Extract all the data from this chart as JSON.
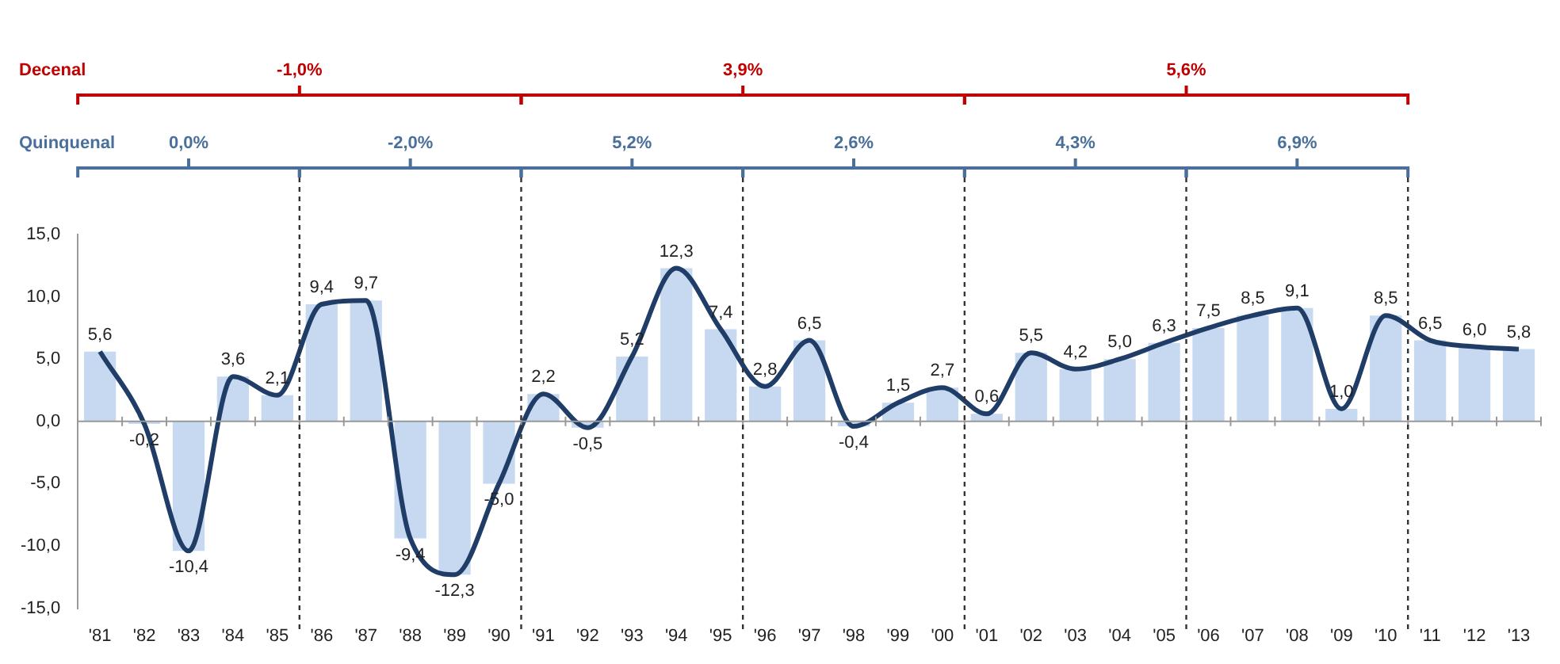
{
  "chart_data": {
    "type": "bar",
    "categories": [
      "'81",
      "'82",
      "'83",
      "'84",
      "'85",
      "'86",
      "'87",
      "'88",
      "'89",
      "'90",
      "'91",
      "'92",
      "'93",
      "'94",
      "'95",
      "'96",
      "'97",
      "'98",
      "'99",
      "'00",
      "'01",
      "'02",
      "'03",
      "'04",
      "'05",
      "'06",
      "'07",
      "'08",
      "'09",
      "'10",
      "'11",
      "'12",
      "'13"
    ],
    "series": [
      {
        "color": "#c6d9f1",
        "values": [
          5.6,
          -0.2,
          -10.4,
          3.6,
          2.1,
          9.4,
          9.7,
          -9.4,
          -12.3,
          -5.0,
          2.2,
          -0.5,
          5.2,
          12.3,
          7.4,
          2.8,
          6.5,
          -0.4,
          1.5,
          2.7,
          0.6,
          5.5,
          4.2,
          5.0,
          6.3,
          7.5,
          8.5,
          9.1,
          1.0,
          8.5,
          6.5,
          6.0,
          5.8
        ],
        "value_labels": [
          "5,6",
          "-0,2",
          "-10,4",
          "3,6",
          "2,1",
          "9,4",
          "9,7",
          "-9,4",
          "-12,3",
          "-5,0",
          "2,2",
          "-0,5",
          "5,2",
          "12,3",
          "7,4",
          "2,8",
          "6,5",
          "-0,4",
          "1,5",
          "2,7",
          "0,6",
          "5,5",
          "4,2",
          "5,0",
          "6,3",
          "7,5",
          "8,5",
          "9,1",
          "1,0",
          "8,5",
          "6,5",
          "6,0",
          "5,8"
        ]
      },
      {
        "type": "line",
        "color": "#1f3d66",
        "values": [
          5.6,
          -0.2,
          -10.4,
          3.6,
          2.1,
          9.4,
          9.7,
          -9.4,
          -12.3,
          -5.0,
          2.2,
          -0.5,
          5.2,
          12.3,
          7.4,
          2.8,
          6.5,
          -0.4,
          1.5,
          2.7,
          0.6,
          5.5,
          4.2,
          5.0,
          6.3,
          7.5,
          8.5,
          9.1,
          1.0,
          8.5,
          6.5,
          6.0,
          5.8
        ]
      }
    ],
    "ylim": [
      -15,
      15
    ],
    "yticks": [
      {
        "value": -15,
        "label": "-15,0"
      },
      {
        "value": -10,
        "label": "-10,0"
      },
      {
        "value": -5,
        "label": "-5,0"
      },
      {
        "value": 0,
        "label": "0,0"
      },
      {
        "value": 5,
        "label": "5,0"
      },
      {
        "value": 10,
        "label": "10,0"
      },
      {
        "value": 15,
        "label": "15,0"
      }
    ],
    "marker": "none",
    "annotations": [
      "Decenal",
      "-1,0%",
      "3,9%",
      "5,6%",
      "Quinquenal",
      "0,0%",
      "-2,0%",
      "5,2%",
      "2,6%",
      "4,3%",
      "6,9%"
    ]
  }
}
